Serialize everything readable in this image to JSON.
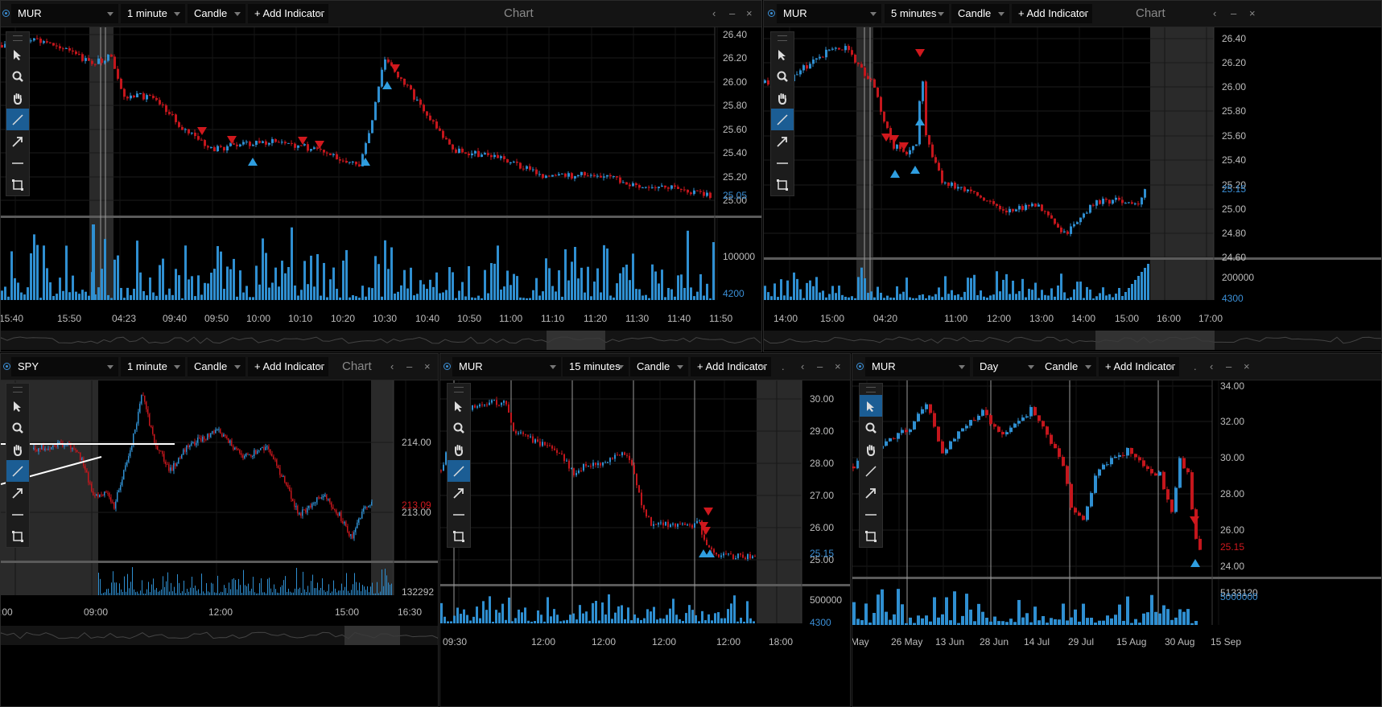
{
  "panels": [
    {
      "id": "p1",
      "symbol": "MUR",
      "interval": "1 minute",
      "chart_type": "Candle",
      "add_indicator": "+ Add Indicator",
      "title": "Chart",
      "controls": [
        "‹",
        "–",
        "×"
      ],
      "price_labels": [
        "26.40",
        "26.20",
        "26.00",
        "25.80",
        "25.60",
        "25.40",
        "25.20",
        "25.00"
      ],
      "last_price": "25.05",
      "volume_labels": [
        "100000",
        "4200"
      ],
      "time_labels": [
        "15:40",
        "15:50",
        "04:23",
        "09:40",
        "09:50",
        "10:00",
        "10:10",
        "10:20",
        "10:30",
        "10:40",
        "10:50",
        "11:00",
        "11:10",
        "11:20",
        "11:30",
        "11:40",
        "11:50"
      ]
    },
    {
      "id": "p2",
      "symbol": "MUR",
      "interval": "5 minutes",
      "chart_type": "Candle",
      "add_indicator": "+ Add Indicator",
      "title": "Chart",
      "controls": [
        "‹",
        "–",
        "×"
      ],
      "price_labels": [
        "26.40",
        "26.20",
        "26.00",
        "25.80",
        "25.60",
        "25.40",
        "25.20",
        "25.00",
        "24.80",
        "24.60"
      ],
      "last_price": "25.15",
      "volume_labels": [
        "200000",
        "4300"
      ],
      "time_labels": [
        "14:00",
        "15:00",
        "04:20",
        "11:00",
        "12:00",
        "13:00",
        "14:00",
        "15:00",
        "16:00",
        "17:00"
      ]
    },
    {
      "id": "p3",
      "symbol": "SPY",
      "interval": "1 minute",
      "chart_type": "Candle",
      "add_indicator": "+ Add Indicator",
      "title": "Chart",
      "controls": [
        "‹",
        "–",
        "×"
      ],
      "price_labels": [
        "214.00",
        "213.00"
      ],
      "last_price": "213.09",
      "volume_labels": [
        "132292"
      ],
      "time_labels": [
        ":00",
        "09:00",
        "12:00",
        "15:00",
        "16:30"
      ]
    },
    {
      "id": "p4",
      "symbol": "MUR",
      "interval": "15 minutes",
      "chart_type": "Candle",
      "add_indicator": "+ Add Indicator",
      "title": "",
      "controls": [
        ".",
        "‹",
        "–",
        "×"
      ],
      "price_labels": [
        "30.00",
        "29.00",
        "28.00",
        "27.00",
        "26.00",
        "25.00"
      ],
      "last_price": "25.15",
      "volume_labels": [
        "500000",
        "4300"
      ],
      "time_labels": [
        "09:30",
        "12:00",
        "12:00",
        "12:00",
        "12:00",
        "18:00"
      ]
    },
    {
      "id": "p5",
      "symbol": "MUR",
      "interval": "Day",
      "chart_type": "Candle",
      "add_indicator": "+ Add Indicator",
      "title": "",
      "controls": [
        ".",
        "‹",
        "–",
        "×"
      ],
      "price_labels": [
        "34.00",
        "32.00",
        "30.00",
        "28.00",
        "26.00",
        "24.00"
      ],
      "last_price": "25.15",
      "volume_labels": [
        "5133120",
        "5000000"
      ],
      "time_labels": [
        "May",
        "26 May",
        "13 Jun",
        "28 Jun",
        "14 Jul",
        "29 Jul",
        "15 Aug",
        "30 Aug",
        "15 Sep"
      ]
    }
  ],
  "tools": [
    "pointer-icon",
    "zoom-icon",
    "pan-hand-icon",
    "trend-line-icon",
    "arrow-icon",
    "horizontal-line-icon",
    "rectangle-icon"
  ],
  "colors": {
    "up": "#2f8fd1",
    "down": "#c4161c",
    "buy_marker": "#2f9ee0",
    "sell_marker": "#d0181d",
    "bg": "#000000",
    "header": "#141414"
  }
}
